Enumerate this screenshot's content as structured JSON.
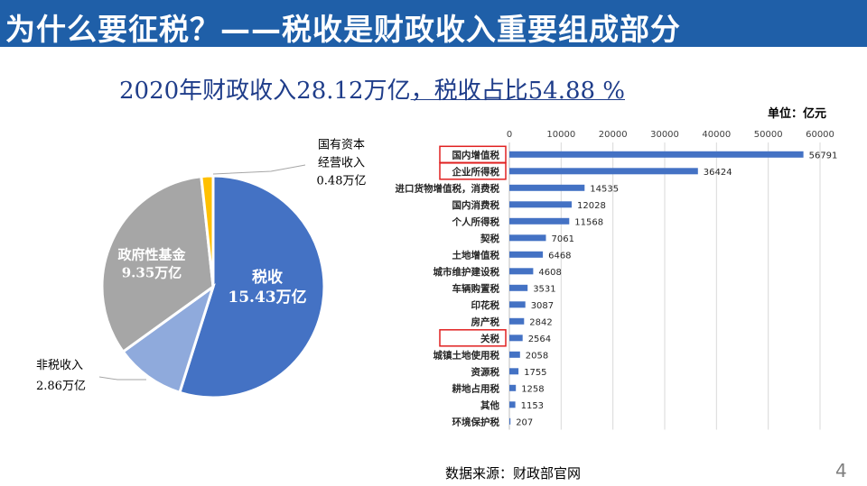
{
  "header": {
    "title": "为什么要征税？——税收是财政收入重要组成部分"
  },
  "subtitle": {
    "prefix": "2020年财政收入28.12万亿",
    "highlight": "，税收占比54.88 %"
  },
  "unit_label": "单位：亿元",
  "source": "数据来源：财政部官网",
  "page_number": "4",
  "colors": {
    "header_bg": "#1f5fa8",
    "subtitle_text": "#1f3d8a",
    "bar": "#4472c4",
    "highlight_box": "#e02020",
    "pie_tax": "#4472c4",
    "pie_nontax": "#8faadc",
    "pie_fund": "#a6a6a6",
    "pie_state_capital": "#ffc000"
  },
  "chart_data": [
    {
      "type": "pie",
      "slices": [
        {
          "label_lines": [
            "税收",
            "15.43万亿"
          ],
          "value": 15.43,
          "color": "#4472c4",
          "label_position": "inside"
        },
        {
          "label_lines": [
            "非税收入",
            "2.86万亿"
          ],
          "value": 2.86,
          "color": "#8faadc",
          "label_position": "outside"
        },
        {
          "label_lines": [
            "政府性基金",
            "9.35万亿"
          ],
          "value": 9.35,
          "color": "#a6a6a6",
          "label_position": "inside"
        },
        {
          "label_lines": [
            "国有资本",
            "经营收入",
            "0.48万亿"
          ],
          "value": 0.48,
          "color": "#ffc000",
          "label_position": "outside"
        }
      ]
    },
    {
      "type": "bar",
      "orientation": "horizontal",
      "xlim": [
        0,
        60000
      ],
      "xticks": [
        "0",
        "10000",
        "20000",
        "30000",
        "40000",
        "50000",
        "60000"
      ],
      "xtick_values": [
        0,
        10000,
        20000,
        30000,
        40000,
        50000,
        60000
      ],
      "grid": true,
      "categories": [
        "国内增值税",
        "企业所得税",
        "进口货物增值税，消费税",
        "国内消费税",
        "个人所得税",
        "契税",
        "土地增值税",
        "城市维护建设税",
        "车辆购置税",
        "印花税",
        "房产税",
        "关税",
        "城镇土地使用税",
        "资源税",
        "耕地占用税",
        "其他",
        "环境保护税"
      ],
      "values": [
        56791,
        36424,
        14535,
        12028,
        11568,
        7061,
        6468,
        4608,
        3531,
        3087,
        2842,
        2564,
        2058,
        1755,
        1258,
        1153,
        207
      ],
      "highlighted_categories": [
        "国内增值税",
        "企业所得税",
        "关税"
      ]
    }
  ]
}
